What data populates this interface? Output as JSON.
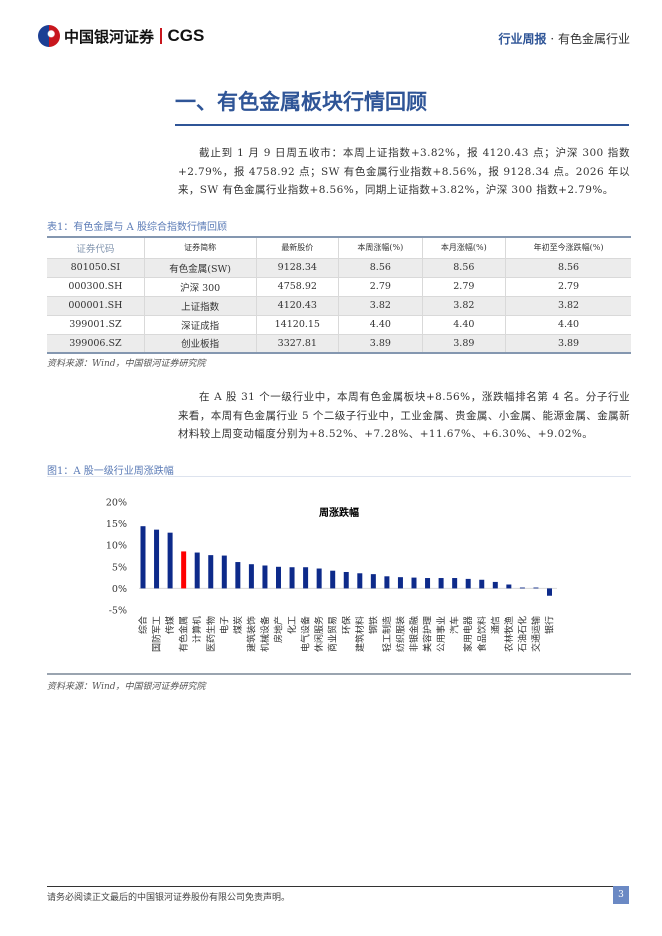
{
  "header": {
    "logo_cn": "中国银河证券",
    "logo_en": "CGS",
    "report_type": "行业周报",
    "separator": " · ",
    "industry": "有色金属行业"
  },
  "section_title": "一、有色金属板块行情回顾",
  "paragraph1": "截止到 1 月 9 日周五收市：本周上证指数+3.82%，报 4120.43 点；沪深 300 指数+2.79%，报 4758.92 点；SW 有色金属行业指数+8.56%，报 9128.34 点。2026 年以来，SW 有色金属行业指数+8.56%，同期上证指数+3.82%，沪深 300 指数+2.79%。",
  "table": {
    "caption": "表1：有色金属与 A 股综合指数行情回顾",
    "headers": [
      "证券代码",
      "证券简称",
      "最新股价",
      "本周涨幅(%)",
      "本月涨幅(%)",
      "年初至今涨跌幅(%)"
    ],
    "rows": [
      [
        "801050.SI",
        "有色金属(SW)",
        "9128.34",
        "8.56",
        "8.56",
        "8.56"
      ],
      [
        "000300.SH",
        "沪深 300",
        "4758.92",
        "2.79",
        "2.79",
        "2.79"
      ],
      [
        "000001.SH",
        "上证指数",
        "4120.43",
        "3.82",
        "3.82",
        "3.82"
      ],
      [
        "399001.SZ",
        "深证成指",
        "14120.15",
        "4.40",
        "4.40",
        "4.40"
      ],
      [
        "399006.SZ",
        "创业板指",
        "3327.81",
        "3.89",
        "3.89",
        "3.89"
      ]
    ],
    "source": "资料来源：Wind，中国银河证券研究院"
  },
  "paragraph2": "在 A 股 31 个一级行业中，本周有色金属板块+8.56%，涨跌幅排名第 4 名。分子行业来看，本周有色金属行业 5 个二级子行业中，工业金属、贵金属、小金属、能源金属、金属新材料较上周变动幅度分别为+8.52%、+7.28%、+11.67%、+6.30%、+9.02%。",
  "figure": {
    "caption": "图1：A 股一级行业周涨跌幅",
    "source": "资料来源：Wind，中国银河证券研究院"
  },
  "chart_data": {
    "type": "bar",
    "title": "周涨跌幅",
    "categories": [
      "综合",
      "国防军工",
      "传媒",
      "有色金属",
      "计算机",
      "医药生物",
      "电子",
      "煤炭",
      "建筑装饰",
      "机械设备",
      "房地产",
      "化工",
      "电气设备",
      "休闲服务",
      "商业贸易",
      "环保",
      "建筑材料",
      "钢铁",
      "轻工制造",
      "纺织服装",
      "非银金融",
      "美容护理",
      "公用事业",
      "汽车",
      "家用电器",
      "食品饮料",
      "通信",
      "农林牧渔",
      "石油石化",
      "交通运输",
      "银行"
    ],
    "values": [
      14.4,
      13.6,
      12.9,
      8.56,
      8.3,
      7.7,
      7.6,
      6.1,
      5.6,
      5.3,
      5.0,
      4.9,
      4.9,
      4.6,
      4.1,
      3.8,
      3.5,
      3.3,
      2.8,
      2.6,
      2.5,
      2.4,
      2.4,
      2.4,
      2.2,
      2.0,
      1.5,
      0.9,
      0.2,
      0.2,
      -1.7
    ],
    "unit": "%",
    "ylim": [
      -5,
      20
    ],
    "yticks": [
      "20%",
      "15%",
      "10%",
      "5%",
      "0%",
      "-5%"
    ],
    "ytick_values": [
      20,
      15,
      10,
      5,
      0,
      -5
    ],
    "bar_color": "#0d2a8a",
    "highlight_color": "#ff0000",
    "highlight_category": "有色金属",
    "grid": false
  },
  "footer": {
    "disclaimer": "请务必阅读正文最后的中国银河证券股份有限公司免责声明。",
    "page": "3"
  }
}
